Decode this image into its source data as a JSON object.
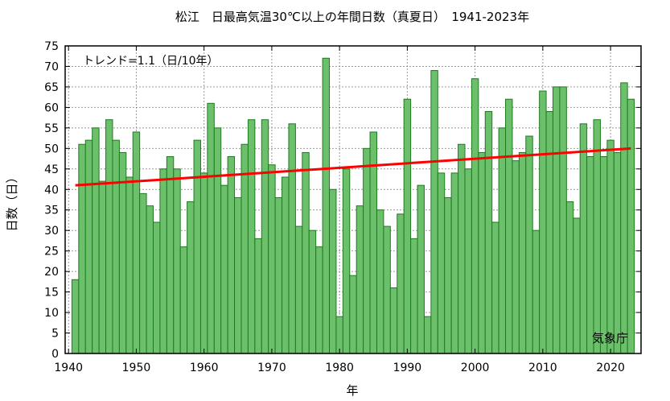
{
  "chart_data": {
    "type": "bar",
    "title": "松江　日最高気温30℃以上の年間日数（真夏日）　1941-2023年",
    "xlabel": "年",
    "ylabel": "日数（日）",
    "trend_label": "トレンド=1.1（日/10年）",
    "source_label": "気象庁",
    "xlim": [
      1939.5,
      2024.5
    ],
    "ylim": [
      0,
      75
    ],
    "x_ticks": [
      1940,
      1950,
      1960,
      1970,
      1980,
      1990,
      2000,
      2010,
      2020
    ],
    "y_ticks": [
      0,
      5,
      10,
      15,
      20,
      25,
      30,
      35,
      40,
      45,
      50,
      55,
      60,
      65,
      70,
      75
    ],
    "grid": true,
    "series": [
      {
        "x": [
          1941,
          1942,
          1943,
          1944,
          1945,
          1946,
          1947,
          1948,
          1949,
          1950,
          1951,
          1952,
          1953,
          1954,
          1955,
          1956,
          1957,
          1958,
          1959,
          1960,
          1961,
          1962,
          1963,
          1964,
          1965,
          1966,
          1967,
          1968,
          1969,
          1970,
          1971,
          1972,
          1973,
          1974,
          1975,
          1976,
          1977,
          1978,
          1979,
          1980,
          1981,
          1982,
          1983,
          1984,
          1985,
          1986,
          1987,
          1988,
          1989,
          1990,
          1991,
          1992,
          1993,
          1994,
          1995,
          1996,
          1997,
          1998,
          1999,
          2000,
          2001,
          2002,
          2003,
          2004,
          2005,
          2006,
          2007,
          2008,
          2009,
          2010,
          2011,
          2012,
          2013,
          2014,
          2015,
          2016,
          2017,
          2018,
          2019,
          2020,
          2021,
          2022,
          2023
        ],
        "values": [
          18,
          51,
          52,
          55,
          42,
          57,
          52,
          49,
          43,
          54,
          39,
          36,
          32,
          45,
          48,
          45,
          26,
          37,
          52,
          44,
          61,
          55,
          41,
          48,
          38,
          51,
          57,
          28,
          57,
          46,
          38,
          43,
          56,
          31,
          49,
          30,
          26,
          72,
          40,
          9,
          45,
          19,
          36,
          50,
          54,
          35,
          31,
          16,
          34,
          62,
          28,
          41,
          9,
          69,
          44,
          38,
          44,
          51,
          45,
          67,
          49,
          59,
          32,
          55,
          62,
          47,
          49,
          53,
          30,
          64,
          59,
          65,
          65,
          37,
          33,
          56,
          48,
          57,
          48,
          52,
          49,
          66,
          62
        ],
        "color": "#6cc06c",
        "edge_color": "#1f7a1f"
      }
    ],
    "trend": {
      "x": [
        1941,
        2023
      ],
      "y": [
        41,
        50
      ],
      "color": "#ff0000"
    }
  }
}
